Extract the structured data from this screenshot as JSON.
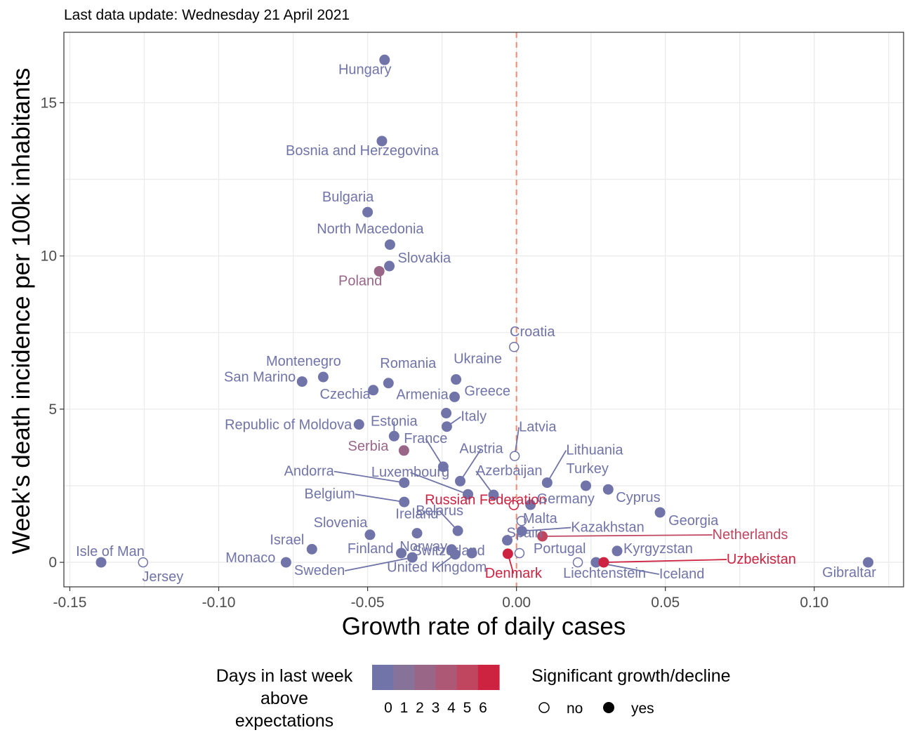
{
  "subtitle": "Last data update: Wednesday 21 April 2021",
  "colors": {
    "scale": [
      "#7074a8",
      "#87729a",
      "#9a6688",
      "#ad5874",
      "#c04660",
      "#cd2240"
    ],
    "refline": "#f08a70",
    "grid": "#ebebeb",
    "tick_text": "#4d4d4d",
    "panel_border": "#333333"
  },
  "legend": {
    "color_title": [
      "Days in last week",
      "above",
      "expectations"
    ],
    "color_labels": [
      "0",
      "1",
      "2",
      "3",
      "4",
      "5",
      "6"
    ],
    "shape_title": "Significant growth/decline",
    "shape_labels": [
      "no",
      "yes"
    ]
  },
  "chart_data": {
    "type": "scatter",
    "xlabel": "Growth rate of daily cases",
    "ylabel": "Week's death incidence per 100k inhabitants",
    "xlim": [
      -0.152,
      0.13
    ],
    "ylim": [
      -0.8,
      17.3
    ],
    "xticks": [
      -0.15,
      -0.1,
      -0.05,
      0.0,
      0.05,
      0.1
    ],
    "xtick_labels": [
      "-0.15",
      "-0.10",
      "-0.05",
      "0.00",
      "0.05",
      "0.10"
    ],
    "yticks": [
      0,
      5,
      10,
      15
    ],
    "ytick_labels": [
      "0",
      "5",
      "10",
      "15"
    ],
    "reference_line_x": 0,
    "grid": true,
    "points": [
      {
        "name": "Hungary",
        "x": -0.0443,
        "y": 16.4,
        "days": 0,
        "sig": true
      },
      {
        "name": "Bosnia and Herzegovina",
        "x": -0.0452,
        "y": 13.75,
        "days": 0,
        "sig": true
      },
      {
        "name": "Bulgaria",
        "x": -0.05,
        "y": 11.43,
        "days": 0,
        "sig": true
      },
      {
        "name": "North Macedonia",
        "x": -0.0425,
        "y": 10.37,
        "days": 0,
        "sig": true
      },
      {
        "name": "Slovakia",
        "x": -0.0427,
        "y": 9.67,
        "days": 0,
        "sig": true
      },
      {
        "name": "Poland",
        "x": -0.0461,
        "y": 9.5,
        "days": 2,
        "sig": true
      },
      {
        "name": "Croatia",
        "x": -0.0008,
        "y": 7.03,
        "days": 0,
        "sig": false
      },
      {
        "name": "Montenegro",
        "x": -0.0649,
        "y": 6.05,
        "days": 0,
        "sig": true
      },
      {
        "name": "San Marino",
        "x": -0.072,
        "y": 5.9,
        "days": 0,
        "sig": true
      },
      {
        "name": "Romania",
        "x": -0.043,
        "y": 5.85,
        "days": 0,
        "sig": true
      },
      {
        "name": "Ukraine",
        "x": -0.0203,
        "y": 5.97,
        "days": 0,
        "sig": true
      },
      {
        "name": "Czechia",
        "x": -0.0481,
        "y": 5.62,
        "days": 0,
        "sig": true
      },
      {
        "name": "Greece",
        "x": -0.0208,
        "y": 5.4,
        "days": 0,
        "sig": true
      },
      {
        "name": "Armenia",
        "x": -0.0236,
        "y": 4.87,
        "days": 0,
        "sig": true
      },
      {
        "name": "Republic of Moldova",
        "x": -0.0529,
        "y": 4.5,
        "days": 0,
        "sig": true
      },
      {
        "name": "Italy",
        "x": -0.0234,
        "y": 4.43,
        "days": 0,
        "sig": true
      },
      {
        "name": "Estonia",
        "x": -0.0411,
        "y": 4.12,
        "days": 0,
        "sig": true
      },
      {
        "name": "Serbia",
        "x": -0.0378,
        "y": 3.65,
        "days": 2,
        "sig": true
      },
      {
        "name": "Latvia",
        "x": -0.0006,
        "y": 3.47,
        "days": 0,
        "sig": false
      },
      {
        "name": "France",
        "x": -0.0246,
        "y": 3.12,
        "days": 0,
        "sig": true
      },
      {
        "name": "Austria",
        "x": -0.0189,
        "y": 2.65,
        "days": 0,
        "sig": true
      },
      {
        "name": "Lithuania",
        "x": 0.0103,
        "y": 2.6,
        "days": 0,
        "sig": true
      },
      {
        "name": "Andorra",
        "x": -0.0377,
        "y": 2.6,
        "days": 0,
        "sig": true
      },
      {
        "name": "Turkey",
        "x": 0.0233,
        "y": 2.5,
        "days": 0,
        "sig": true
      },
      {
        "name": "Cyprus",
        "x": 0.0308,
        "y": 2.38,
        "days": 0,
        "sig": true
      },
      {
        "name": "Luxembourg",
        "x": -0.0163,
        "y": 2.22,
        "days": 0,
        "sig": true
      },
      {
        "name": "Azerbaijan",
        "x": -0.0077,
        "y": 2.2,
        "days": 0,
        "sig": true
      },
      {
        "name": "Belgium",
        "x": -0.0377,
        "y": 1.97,
        "days": 0,
        "sig": true
      },
      {
        "name": "Russian Federation",
        "x": -0.0009,
        "y": 1.87,
        "days": 6,
        "sig": false
      },
      {
        "name": "Germany",
        "x": 0.0047,
        "y": 1.88,
        "days": 0,
        "sig": true
      },
      {
        "name": "Georgia",
        "x": 0.0482,
        "y": 1.63,
        "days": 0,
        "sig": true
      },
      {
        "name": "Malta",
        "x": 0.0017,
        "y": 1.35,
        "days": 0,
        "sig": false
      },
      {
        "name": "Belarus",
        "x": -0.0197,
        "y": 1.03,
        "days": 0,
        "sig": true
      },
      {
        "name": "Kazakhstan",
        "x": 0.0018,
        "y": 1.02,
        "days": 0,
        "sig": true
      },
      {
        "name": "Ireland",
        "x": -0.0334,
        "y": 0.95,
        "days": 0,
        "sig": true
      },
      {
        "name": "Slovenia",
        "x": -0.0492,
        "y": 0.9,
        "days": 0,
        "sig": true
      },
      {
        "name": "Netherlands",
        "x": 0.0087,
        "y": 0.85,
        "days": 4,
        "sig": true
      },
      {
        "name": "Spain",
        "x": -0.0031,
        "y": 0.72,
        "days": 0,
        "sig": true
      },
      {
        "name": "Israel",
        "x": -0.0687,
        "y": 0.43,
        "days": 0,
        "sig": true
      },
      {
        "name": "Norway",
        "x": -0.0218,
        "y": 0.42,
        "days": 0,
        "sig": true
      },
      {
        "name": "Kyrgyzstan",
        "x": 0.0338,
        "y": 0.37,
        "days": 0,
        "sig": true
      },
      {
        "name": "Switzerland",
        "x": -0.015,
        "y": 0.3,
        "days": 0,
        "sig": true
      },
      {
        "name": "Finland",
        "x": -0.0387,
        "y": 0.3,
        "days": 0,
        "sig": true
      },
      {
        "name": "Portugal",
        "x": 0.001,
        "y": 0.3,
        "days": 0,
        "sig": false
      },
      {
        "name": "Denmark",
        "x": -0.0029,
        "y": 0.28,
        "days": 6,
        "sig": true
      },
      {
        "name": "United Kingdom",
        "x": -0.0206,
        "y": 0.26,
        "days": 0,
        "sig": true
      },
      {
        "name": "Sweden",
        "x": -0.035,
        "y": 0.16,
        "days": 0,
        "sig": true
      },
      {
        "name": "Isle of Man",
        "x": -0.1395,
        "y": 0.0,
        "days": 0,
        "sig": true
      },
      {
        "name": "Jersey",
        "x": -0.1254,
        "y": 0.0,
        "days": 0,
        "sig": false
      },
      {
        "name": "Monaco",
        "x": -0.0774,
        "y": 0.0,
        "days": 0,
        "sig": true
      },
      {
        "name": "Liechtenstein",
        "x": 0.0206,
        "y": 0.0,
        "days": 0,
        "sig": false
      },
      {
        "name": "Iceland",
        "x": 0.0267,
        "y": 0.0,
        "days": 0,
        "sig": true
      },
      {
        "name": "Uzbekistan",
        "x": 0.0293,
        "y": 0.0,
        "days": 5,
        "sig": true
      },
      {
        "name": "Gibraltar",
        "x": 0.1181,
        "y": 0.0,
        "days": 0,
        "sig": true
      }
    ]
  }
}
